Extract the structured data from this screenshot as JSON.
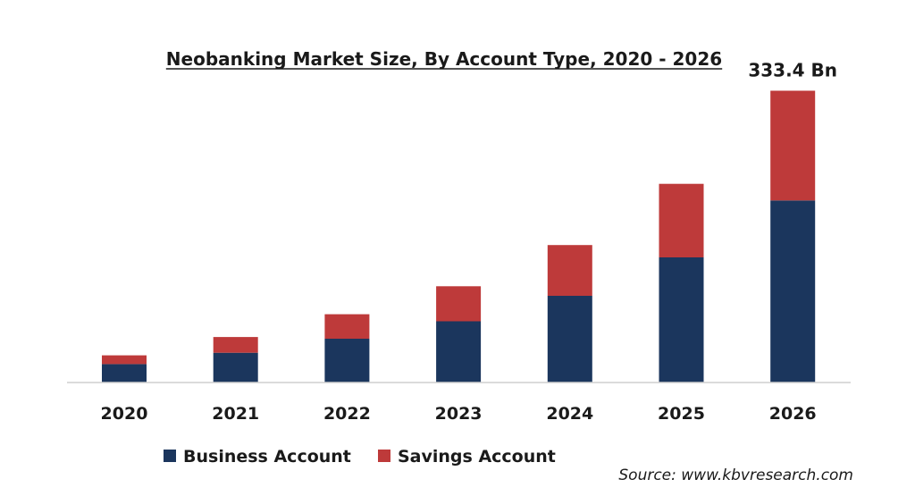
{
  "chart_data": {
    "type": "bar",
    "stacked": true,
    "title": "Neobanking Market Size, By Account Type, 2020 - 2026",
    "categories": [
      "2020",
      "2021",
      "2022",
      "2023",
      "2024",
      "2025",
      "2026"
    ],
    "series": [
      {
        "name": "Business Account",
        "color": "#1b365d",
        "values": [
          21,
          34,
          50,
          70,
          99,
          143,
          208
        ]
      },
      {
        "name": "Savings Account",
        "color": "#be3a3a",
        "values": [
          10,
          18,
          28,
          40,
          58,
          84,
          125.4
        ]
      }
    ],
    "data_labels": [
      {
        "category": "2026",
        "text": "333.4 Bn"
      }
    ],
    "ylim": [
      0,
      340
    ],
    "grid": false,
    "legend_position": "bottom-left",
    "source": "Source: www.kbvresearch.com"
  }
}
